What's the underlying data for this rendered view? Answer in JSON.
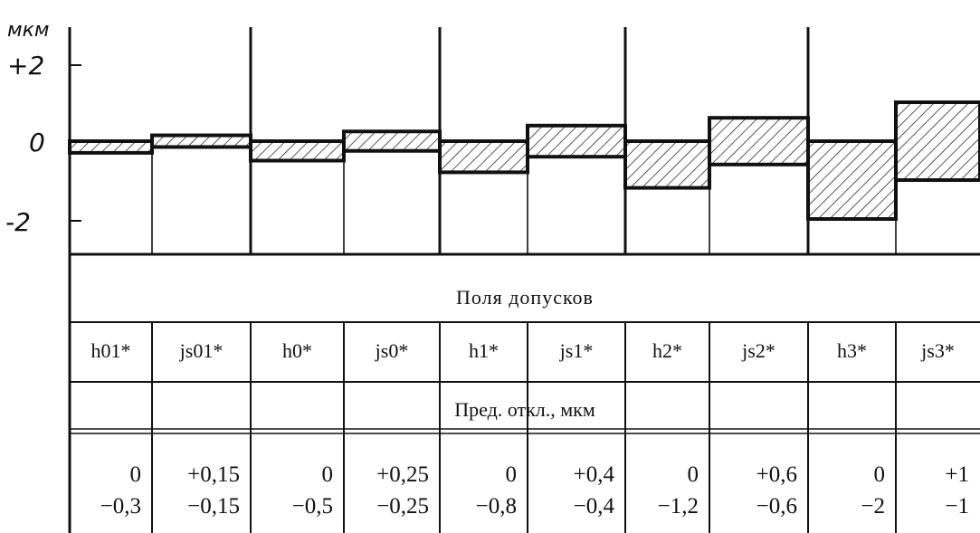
{
  "chart_data": {
    "type": "bar",
    "unit_label": "мкм",
    "y_ticks": [
      {
        "value": 2,
        "label": "+2"
      },
      {
        "value": 0,
        "label": "0"
      },
      {
        "value": -2,
        "label": "-2"
      }
    ],
    "ylim": [
      -3.8,
      3.9
    ],
    "table_title": "Поля допусков",
    "deviation_title": "Пред. откл., мкм",
    "fields": [
      {
        "name": "h01*",
        "upper": 0,
        "lower": -0.3,
        "upper_label": "0",
        "lower_label": "−0,3"
      },
      {
        "name": "js01*",
        "upper": 0.15,
        "lower": -0.15,
        "upper_label": "+0,15",
        "lower_label": "−0,15"
      },
      {
        "name": "h0*",
        "upper": 0,
        "lower": -0.5,
        "upper_label": "0",
        "lower_label": "−0,5"
      },
      {
        "name": "js0*",
        "upper": 0.25,
        "lower": -0.25,
        "upper_label": "+0,25",
        "lower_label": "−0,25"
      },
      {
        "name": "h1*",
        "upper": 0,
        "lower": -0.8,
        "upper_label": "0",
        "lower_label": "−0,8"
      },
      {
        "name": "js1*",
        "upper": 0.4,
        "lower": -0.4,
        "upper_label": "+0,4",
        "lower_label": "−0,4"
      },
      {
        "name": "h2*",
        "upper": 0,
        "lower": -1.2,
        "upper_label": "0",
        "lower_label": "−1,2"
      },
      {
        "name": "js2*",
        "upper": 0.6,
        "lower": -0.6,
        "upper_label": "+0,6",
        "lower_label": "−0,6"
      },
      {
        "name": "h3*",
        "upper": 0,
        "lower": -2,
        "upper_label": "0",
        "lower_label": "−2"
      },
      {
        "name": "js3*",
        "upper": 1,
        "lower": -1,
        "upper_label": "+1",
        "lower_label": "−1"
      }
    ]
  }
}
